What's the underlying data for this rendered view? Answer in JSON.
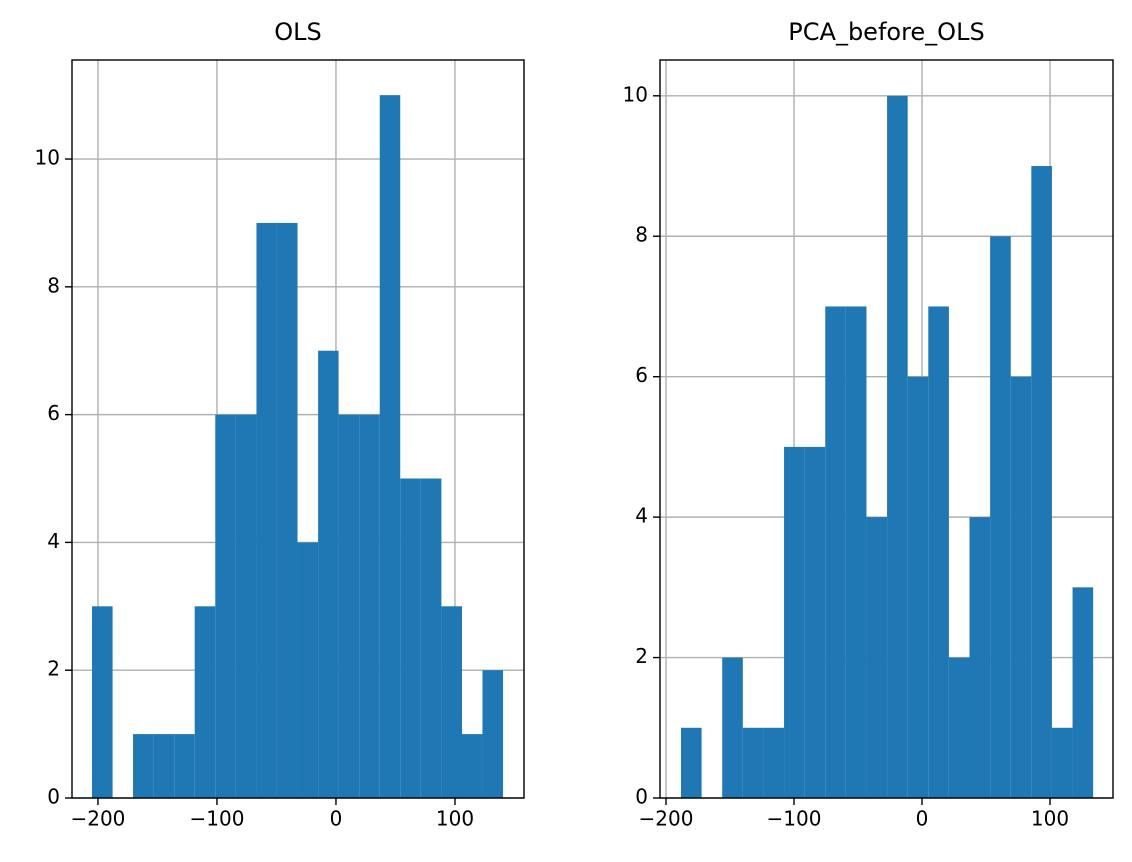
{
  "chart_data": [
    {
      "type": "histogram",
      "title": "OLS",
      "bins": [
        -205.0,
        -187.7,
        -170.5,
        -153.2,
        -135.9,
        -118.7,
        -101.4,
        -84.1,
        -66.8,
        -49.6,
        -32.3,
        -15.0,
        2.2,
        19.5,
        36.8,
        54.0,
        71.3,
        88.6,
        105.9,
        123.1,
        140.4
      ],
      "values": [
        3,
        0,
        1,
        1,
        1,
        3,
        6,
        6,
        9,
        9,
        4,
        7,
        6,
        6,
        11,
        5,
        5,
        3,
        1,
        2
      ],
      "color": "#1f77b4",
      "xlim": [
        -221.8,
        158.0
      ],
      "ylim": [
        0,
        11.55
      ],
      "xticks": [
        {
          "value": -200,
          "label": "−200"
        },
        {
          "value": -100,
          "label": "−100"
        },
        0,
        100
      ],
      "yticks": [
        0,
        2,
        4,
        6,
        8,
        10
      ],
      "grid": true
    },
    {
      "type": "histogram",
      "title": "PCA_before_OLS",
      "bins": [
        -188.3,
        -172.2,
        -156.1,
        -140.0,
        -123.9,
        -107.8,
        -91.7,
        -75.6,
        -59.5,
        -43.4,
        -27.3,
        -11.2,
        4.9,
        21.0,
        37.1,
        53.2,
        69.3,
        85.4,
        101.5,
        117.6,
        133.7
      ],
      "values": [
        1,
        0,
        2,
        1,
        1,
        5,
        5,
        7,
        7,
        4,
        10,
        6,
        7,
        2,
        4,
        8,
        6,
        9,
        1,
        3
      ],
      "color": "#1f77b4",
      "xlim": [
        -204.7,
        149.2
      ],
      "ylim": [
        0,
        10.51
      ],
      "xticks": [
        {
          "value": -200,
          "label": "−200"
        },
        {
          "value": -100,
          "label": "−100"
        },
        0,
        100
      ],
      "yticks": [
        0,
        2,
        4,
        6,
        8,
        10
      ],
      "grid": true
    }
  ]
}
